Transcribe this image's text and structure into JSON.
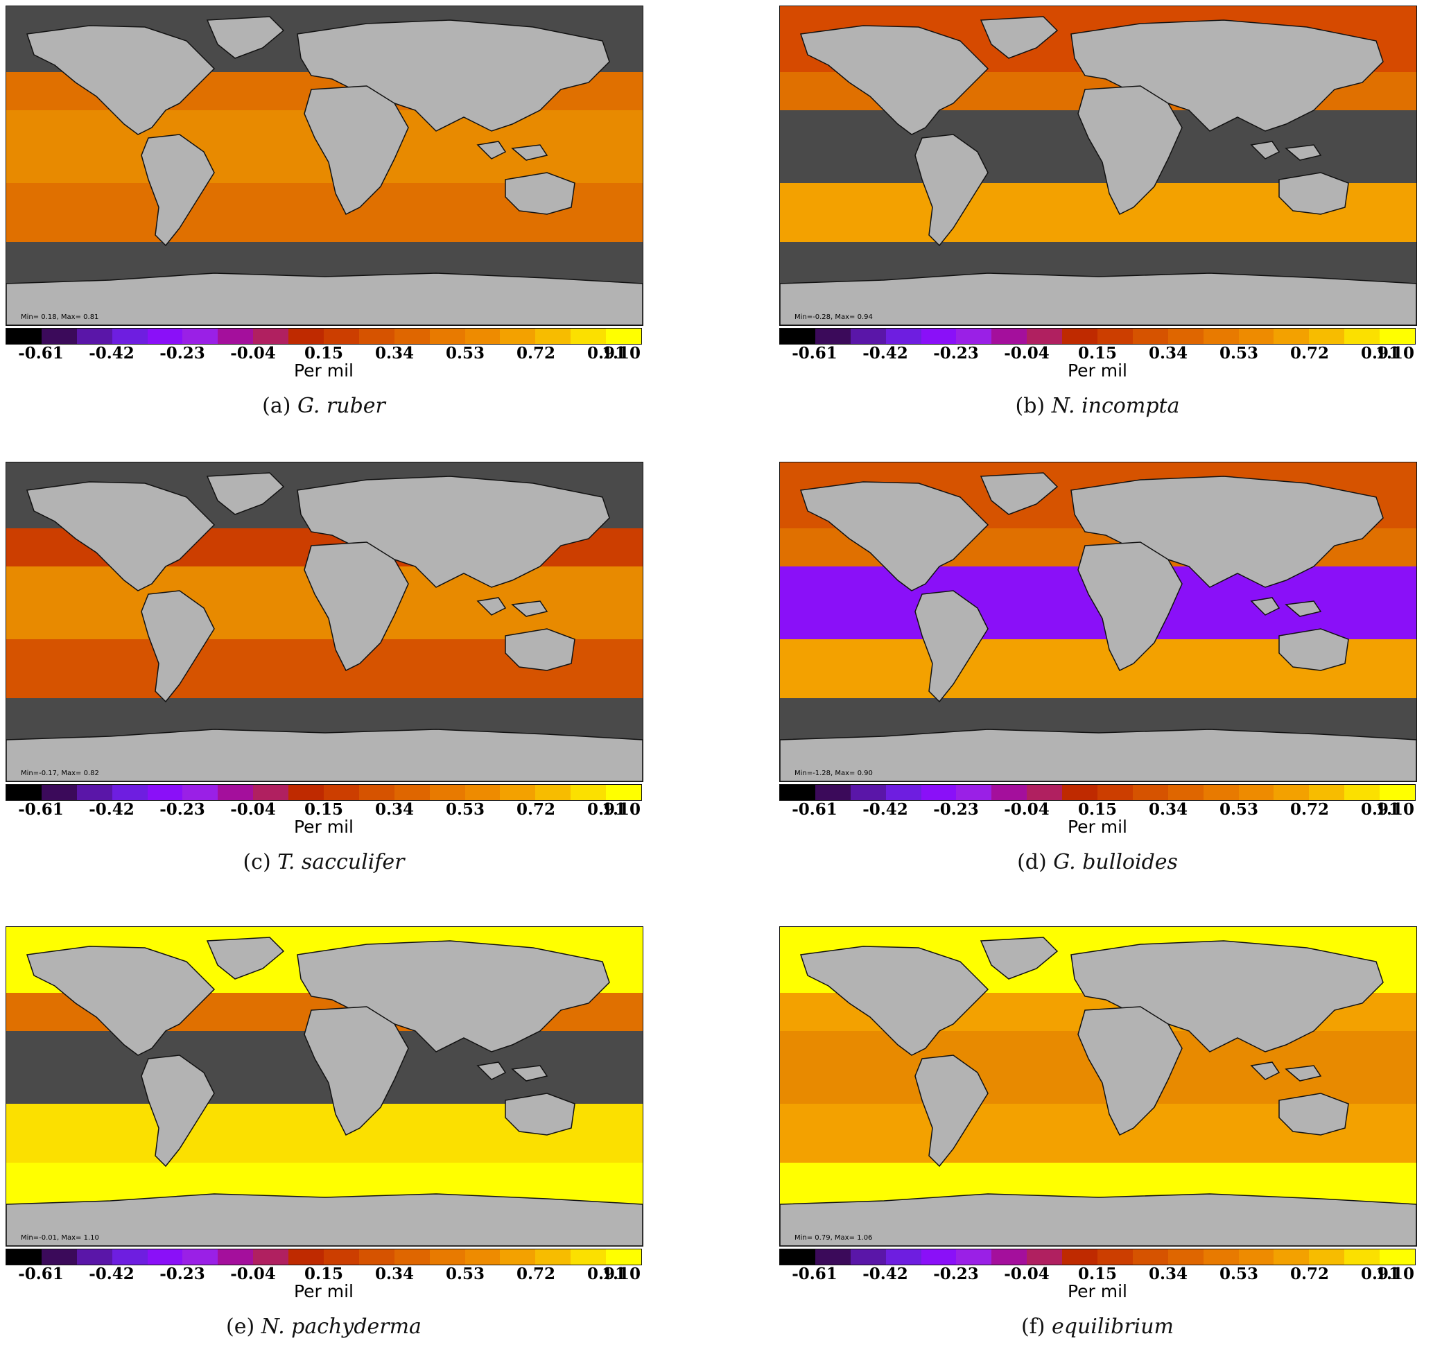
{
  "colorbar": {
    "colors": [
      "#000000",
      "#3b0a5a",
      "#5a16a8",
      "#6e1ee0",
      "#8a10f8",
      "#9a20e6",
      "#a40f9c",
      "#b02060",
      "#bf2a00",
      "#cc3e00",
      "#d65300",
      "#df6600",
      "#e87a00",
      "#ee8b00",
      "#f3a100",
      "#f7bc00",
      "#fbe000",
      "#ffff00"
    ],
    "ticks": [
      "-0.61",
      "-0.42",
      "-0.23",
      "-0.04",
      "0.15",
      "0.34",
      "0.53",
      "0.72",
      "0.91",
      "1.10"
    ],
    "unit": "Per mil"
  },
  "panels": [
    {
      "label": "(a)",
      "species": "G. ruber",
      "stats": "Min= 0.18, Max= 0.81",
      "ocean": {
        "north": "#4a4a4a",
        "band_n": "#e07000",
        "band_c": "#e88a00",
        "band_s": "#e07000",
        "south": "#4a4a4a"
      }
    },
    {
      "label": "(b)",
      "species": "N. incompta",
      "stats": "Min=-0.28, Max= 0.94",
      "ocean": {
        "north": "#d64a00",
        "band_n": "#e07000",
        "band_c": "#4a4a4a",
        "band_s": "#f3a100",
        "south": "#4a4a4a"
      }
    },
    {
      "label": "(c)",
      "species": "T. sacculifer",
      "stats": "Min=-0.17, Max= 0.82",
      "ocean": {
        "north": "#4a4a4a",
        "band_n": "#cc3e00",
        "band_c": "#e88a00",
        "band_s": "#d65300",
        "south": "#4a4a4a"
      }
    },
    {
      "label": "(d)",
      "species": "G. bulloides",
      "stats": "Min=-1.28, Max= 0.90",
      "ocean": {
        "north": "#d65300",
        "band_n": "#e07000",
        "band_c": "#8a10f8",
        "band_s": "#f3a100",
        "south": "#4a4a4a"
      }
    },
    {
      "label": "(e)",
      "species": "N. pachyderma",
      "stats": "Min=-0.01, Max= 1.10",
      "ocean": {
        "north": "#ffff00",
        "band_n": "#e07000",
        "band_c": "#4a4a4a",
        "band_s": "#fbe000",
        "south": "#ffff00"
      }
    },
    {
      "label": "(f)",
      "species": "equilibrium",
      "stats": "Min= 0.79, Max= 1.06",
      "ocean": {
        "north": "#ffff00",
        "band_n": "#f3a100",
        "band_c": "#e88a00",
        "band_s": "#f3a100",
        "south": "#ffff00"
      }
    }
  ]
}
